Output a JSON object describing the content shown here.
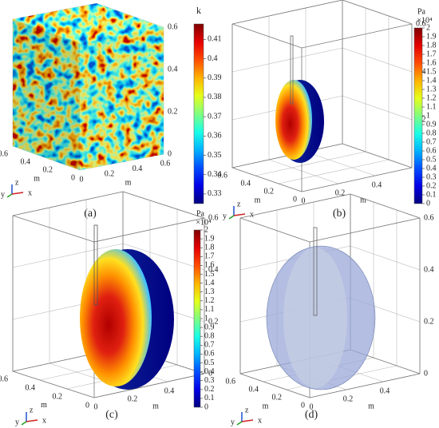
{
  "chart_data": [
    {
      "type": "volume",
      "caption": "(a)",
      "colorbar_title": "k",
      "colormap": "jet",
      "clim": [
        0.325,
        0.418
      ],
      "cticks": [
        0.33,
        0.34,
        0.35,
        0.36,
        0.37,
        0.38,
        0.39,
        0.4,
        0.41
      ],
      "xlim": [
        0,
        0.6
      ],
      "ylim": [
        0,
        0.6
      ],
      "zlim": [
        0,
        0.6
      ],
      "xticks": [
        0,
        0.2,
        0.4,
        0.6
      ],
      "yticks": [
        0,
        0.2,
        0.4,
        0.6
      ],
      "zticks": [
        0,
        0.2,
        0.4,
        0.6
      ],
      "xlabel": "m",
      "ylabel": "m",
      "triad": {
        "x": "x",
        "y": "y",
        "z": "z"
      }
    },
    {
      "type": "field",
      "caption": "(b)",
      "colorbar_title": "Pa",
      "colorbar_multiplier": "×10⁴",
      "colormap": "jet",
      "clim": [
        0,
        2
      ],
      "cticks": [
        0,
        0.1,
        0.2,
        0.3,
        0.4,
        0.5,
        0.6,
        0.7,
        0.8,
        0.9,
        1,
        1.1,
        1.2,
        1.3,
        1.4,
        1.5,
        1.6,
        1.7,
        1.8,
        1.9,
        2
      ],
      "xlim": [
        0,
        0.6
      ],
      "ylim": [
        0,
        0.6
      ],
      "zlim": [
        0,
        0.6
      ],
      "xticks": [
        0,
        0.2,
        0.4
      ],
      "yticks": [
        0,
        0.2,
        0.4,
        0.6
      ],
      "zticks": [
        0,
        0.2,
        0.4,
        0.6
      ],
      "xlabel": "m",
      "ylabel": "m",
      "triad": {
        "x": "x",
        "y": "y",
        "z": "z"
      }
    },
    {
      "type": "field",
      "caption": "(c)",
      "colorbar_title": "Pa",
      "colorbar_multiplier": "×10⁴",
      "colormap": "jet",
      "clim": [
        0,
        2
      ],
      "cticks": [
        0,
        0.1,
        0.2,
        0.3,
        0.4,
        0.5,
        0.6,
        0.7,
        0.8,
        0.9,
        1,
        1.1,
        1.2,
        1.3,
        1.4,
        1.5,
        1.6,
        1.7,
        1.8,
        1.9,
        2
      ],
      "xlim": [
        0,
        0.6
      ],
      "ylim": [
        0,
        0.6
      ],
      "zlim": [
        0,
        0.6
      ],
      "xticks": [
        0,
        0.2,
        0.4
      ],
      "yticks": [
        0,
        0.2,
        0.4,
        0.6
      ],
      "zticks": [
        0,
        0.2,
        0.4,
        0.6
      ],
      "xlabel": "m",
      "ylabel": "m",
      "triad": {
        "x": "x",
        "y": "y",
        "z": "z"
      }
    },
    {
      "type": "mesh",
      "caption": "(d)",
      "xlim": [
        0,
        0.6
      ],
      "ylim": [
        0,
        0.6
      ],
      "zlim": [
        0,
        0.6
      ],
      "xticks": [
        0,
        0.2,
        0.4
      ],
      "yticks": [
        0,
        0.2,
        0.4,
        0.6
      ],
      "zticks": [
        0,
        0.2,
        0.4,
        0.6
      ],
      "xlabel": "m",
      "ylabel": "m",
      "triad": {
        "x": "x",
        "y": "y",
        "z": "z"
      }
    }
  ]
}
